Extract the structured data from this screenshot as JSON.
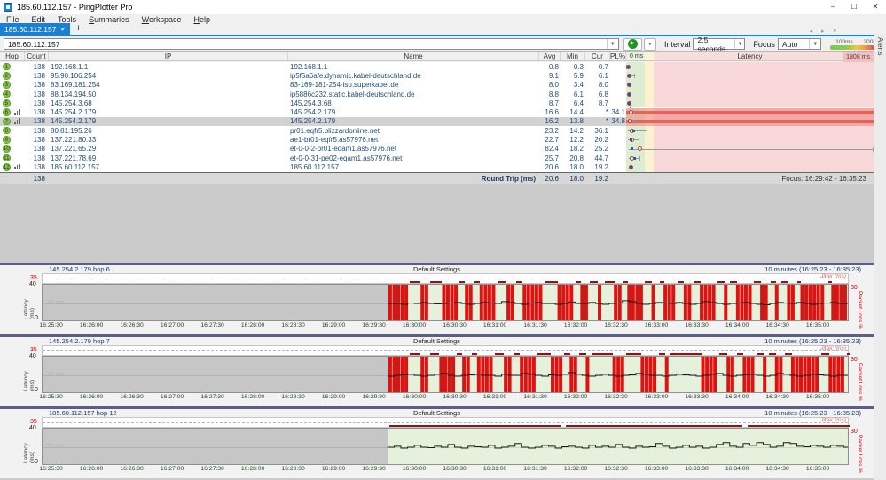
{
  "window": {
    "title": "185.60.112.157 - PingPlotter Pro"
  },
  "window_controls": {
    "minimize": "–",
    "maximize": "☐",
    "close": "✕"
  },
  "menu": {
    "items": [
      "File",
      "Edit",
      "Tools",
      "Summaries",
      "Workspace",
      "Help"
    ]
  },
  "tabs": {
    "active_label": "185.60.112.157",
    "check_icon": "✔",
    "new_tab_label": "+",
    "scroll_icons": "◂ ▸ ▾"
  },
  "toolbar": {
    "target_value": "185.60.112.157",
    "play_icon": "▶",
    "interval_label": "Interval",
    "interval_value": "2.5 seconds",
    "focus_label": "Focus",
    "focus_value": "Auto",
    "legend_100": "100ms",
    "legend_200": "200ms"
  },
  "alerts_tab_label": "Alerts",
  "colors": {
    "accent_blue": "#1a80d1",
    "hop_badge_green": "#8ac14d",
    "loss_red": "#df1212",
    "band_green": "#dcedd2",
    "band_yellow": "#fdf2cf",
    "band_red": "#f7d7d7",
    "jitter_dark_red": "#8e1515"
  },
  "table": {
    "headers": {
      "hop": "Hop",
      "count": "Count",
      "ip": "IP",
      "name": "Name",
      "avg": "Avg",
      "min": "Min",
      "cur": "Cur",
      "pl": "PL%"
    },
    "latency_header": {
      "left": "0 ms",
      "center": "Latency",
      "right": "1808 ms"
    },
    "latency_scale_max_ms": 1808,
    "rows": [
      {
        "hop": "1",
        "count": "138",
        "ip": "192.168.1.1",
        "name": "192.168.1.1",
        "avg": "0.8",
        "min": "0.3",
        "cur": "0.7",
        "pl": "",
        "max_ms": 3,
        "graph_icon": false,
        "selected": false,
        "loss": false
      },
      {
        "hop": "2",
        "count": "138",
        "ip": "95.90.106.254",
        "name": "ip5f5a6afe.dynamic.kabel-deutschland.de",
        "avg": "9.1",
        "min": "5.9",
        "cur": "6.1",
        "pl": "",
        "max_ms": 60,
        "graph_icon": false,
        "selected": false,
        "loss": false
      },
      {
        "hop": "3",
        "count": "138",
        "ip": "83.169.181.254",
        "name": "83-169-181-254-isp.superkabel.de",
        "avg": "8.0",
        "min": "3.4",
        "cur": "8.0",
        "pl": "",
        "max_ms": 25,
        "graph_icon": false,
        "selected": false,
        "loss": false
      },
      {
        "hop": "4",
        "count": "138",
        "ip": "88.134.194.50",
        "name": "ip5886c232.static.kabel-deutschland.de",
        "avg": "8.8",
        "min": "6.1",
        "cur": "6.8",
        "pl": "",
        "max_ms": 30,
        "graph_icon": false,
        "selected": false,
        "loss": false
      },
      {
        "hop": "5",
        "count": "138",
        "ip": "145.254.3.68",
        "name": "145.254.3.68",
        "avg": "8.7",
        "min": "6.4",
        "cur": "8.7",
        "pl": "",
        "max_ms": 25,
        "graph_icon": false,
        "selected": false,
        "loss": false
      },
      {
        "hop": "6",
        "count": "138",
        "ip": "145.254.2.179",
        "name": "145.254.2.179",
        "avg": "16.6",
        "min": "14.4",
        "cur": "*",
        "pl": "34.1",
        "max_ms": 55,
        "graph_icon": true,
        "selected": false,
        "loss": true
      },
      {
        "hop": "7",
        "count": "138",
        "ip": "145.254.2.179",
        "name": "145.254.2.179",
        "avg": "16.2",
        "min": "13.8",
        "cur": "*",
        "pl": "34.8",
        "max_ms": 55,
        "graph_icon": true,
        "selected": true,
        "loss": true
      },
      {
        "hop": "8",
        "count": "138",
        "ip": "80.81.195.26",
        "name": "pr01.eqfr5.blizzardonline.net",
        "avg": "23.2",
        "min": "14.2",
        "cur": "36.1",
        "pl": "",
        "max_ms": 150,
        "graph_icon": false,
        "selected": false,
        "loss": false
      },
      {
        "hop": "9",
        "count": "138",
        "ip": "137.221.80.33",
        "name": "ae1-br01-eqfr5.as57976.net",
        "avg": "22.7",
        "min": "12.2",
        "cur": "20.2",
        "pl": "",
        "max_ms": 90,
        "graph_icon": false,
        "selected": false,
        "loss": false
      },
      {
        "hop": "10",
        "count": "138",
        "ip": "137.221.65.29",
        "name": "et-0-0-2-br01-eqam1.as57976.net",
        "avg": "82.4",
        "min": "18.2",
        "cur": "25.2",
        "pl": "",
        "max_ms": 1808,
        "graph_icon": false,
        "selected": false,
        "loss": false
      },
      {
        "hop": "11",
        "count": "138",
        "ip": "137.221.78.69",
        "name": "et-0-0-31-pe02-eqam1.as57976.net",
        "avg": "25.7",
        "min": "20.8",
        "cur": "44.7",
        "pl": "",
        "max_ms": 100,
        "graph_icon": false,
        "selected": false,
        "loss": false
      },
      {
        "hop": "12",
        "count": "138",
        "ip": "185.60.112.157",
        "name": "185.60.112.157",
        "avg": "20.6",
        "min": "18.0",
        "cur": "19.2",
        "pl": "",
        "max_ms": 40,
        "graph_icon": true,
        "selected": false,
        "loss": false
      }
    ],
    "summary": {
      "count": "138",
      "label": "Round Trip (ms)",
      "avg": "20.6",
      "min": "18.0",
      "cur": "19.2",
      "focus": "Focus: 16:29:42 - 16:35:23"
    }
  },
  "graphs": {
    "shared": {
      "preset_label": "Default Settings",
      "range_label": "10 minutes (16:25:23 - 16:35:23)",
      "jitter_axis_max": "35",
      "jitter_label": "Jitter (ms)",
      "latency_axis_max": "40",
      "latency_axis_min": "0",
      "latency_axis_label": "Latency (ms)",
      "gridline_label": "20 ms",
      "gridline_ms": 20,
      "packet_loss_axis_max": "30",
      "packet_loss_axis_label": "Packet Loss %",
      "duration_s": 600,
      "data_start_s": 257,
      "sample_step_s": 5,
      "latency_scale_max": 40,
      "x_ticks": [
        "16:25:30",
        "16:26:00",
        "16:26:30",
        "16:27:00",
        "16:27:30",
        "16:28:00",
        "16:28:30",
        "16:29:00",
        "16:29:30",
        "16:30:00",
        "16:30:30",
        "16:31:00",
        "16:31:30",
        "16:32:00",
        "16:32:30",
        "16:33:00",
        "16:33:30",
        "16:34:00",
        "16:34:30",
        "16:35:00"
      ],
      "first_tick_offset_s": 7,
      "tick_interval_s": 30
    },
    "items": [
      {
        "title": "145.254.2.179 hop 6",
        "latency_ms": [
          20,
          20,
          19,
          20.5,
          20,
          21,
          20,
          19.5,
          20,
          20.5,
          21,
          20,
          19,
          20,
          21,
          20.5,
          20,
          22,
          21,
          20,
          19,
          20.5,
          21,
          20,
          20,
          19,
          20,
          21.5,
          20,
          20,
          21,
          20,
          19,
          20,
          20.5,
          23,
          22,
          20,
          19,
          20,
          21,
          20.5,
          20,
          21,
          20,
          19,
          20,
          22,
          21,
          20,
          19,
          20,
          20.5,
          21,
          20,
          19,
          18.5,
          20,
          21,
          20.5,
          20,
          21,
          20,
          19,
          20,
          20.5,
          21,
          20,
          20
        ],
        "loss_bars_s": [
          259,
          262,
          265,
          268,
          271,
          283,
          286,
          299,
          302,
          305,
          308,
          316,
          319,
          327,
          330,
          333,
          336,
          347,
          350,
          359,
          362,
          365,
          368,
          371,
          385,
          388,
          391,
          394,
          402,
          405,
          415,
          427,
          430,
          437,
          440,
          443,
          446,
          455,
          464,
          467,
          470,
          479,
          482,
          491,
          494,
          497,
          500,
          509,
          518,
          521,
          524,
          527,
          536,
          539,
          547,
          556,
          559,
          566,
          569,
          572,
          575,
          578,
          581,
          589,
          592,
          595,
          598
        ],
        "jitter_segments_s": [
          [
            273,
            281
          ],
          [
            288,
            297
          ],
          [
            310,
            314
          ],
          [
            321,
            325
          ],
          [
            338,
            345
          ],
          [
            352,
            357
          ],
          [
            373,
            383
          ],
          [
            396,
            400
          ],
          [
            407,
            413
          ],
          [
            418,
            425
          ],
          [
            432,
            435
          ],
          [
            448,
            453
          ],
          [
            459,
            462
          ],
          [
            472,
            477
          ],
          [
            484,
            489
          ],
          [
            502,
            507
          ],
          [
            511,
            516
          ],
          [
            529,
            534
          ],
          [
            541,
            545
          ],
          [
            549,
            554
          ],
          [
            561,
            564
          ],
          [
            584,
            587
          ]
        ]
      },
      {
        "title": "145.254.2.179 hop 7",
        "latency_ms": [
          19,
          20,
          20.5,
          21,
          20,
          19,
          20,
          21,
          22,
          20,
          19,
          20,
          20.5,
          21,
          20,
          20,
          19,
          21,
          20,
          20,
          22,
          21,
          20,
          19,
          20.5,
          20,
          21,
          23,
          21,
          20,
          19,
          20,
          21,
          20,
          19,
          20,
          20.5,
          22,
          21,
          20,
          20,
          19,
          20,
          21,
          20.5,
          20,
          19,
          20,
          21,
          22,
          20,
          19,
          20,
          20.5,
          21,
          20,
          19,
          20,
          22,
          21,
          20,
          19,
          20,
          21,
          20.5,
          20,
          19,
          20,
          20
        ],
        "loss_bars_s": [
          259,
          262,
          265,
          268,
          271,
          283,
          286,
          297,
          300,
          303,
          306,
          314,
          317,
          325,
          328,
          331,
          334,
          345,
          348,
          357,
          360,
          363,
          366,
          380,
          383,
          386,
          394,
          397,
          406,
          426,
          429,
          432,
          447,
          450,
          453,
          456,
          465,
          492,
          495,
          498,
          501,
          511,
          514,
          523,
          526,
          529,
          538,
          547,
          550,
          559,
          562,
          565,
          568,
          571,
          574,
          577,
          587,
          590,
          593,
          596
        ],
        "jitter_segments_s": [
          [
            273,
            281
          ],
          [
            288,
            295
          ],
          [
            308,
            312
          ],
          [
            319,
            323
          ],
          [
            336,
            343
          ],
          [
            350,
            355
          ],
          [
            368,
            378
          ],
          [
            388,
            392
          ],
          [
            399,
            404
          ],
          [
            408,
            424
          ],
          [
            434,
            445
          ],
          [
            458,
            463
          ],
          [
            467,
            490
          ],
          [
            503,
            509
          ],
          [
            516,
            521
          ],
          [
            531,
            536
          ],
          [
            540,
            545
          ],
          [
            552,
            557
          ],
          [
            579,
            585
          ],
          [
            598,
            600
          ]
        ]
      },
      {
        "title": "185.60.112.157 hop 12",
        "latency_ms": [
          20,
          21,
          19,
          20,
          22,
          20,
          19.5,
          21,
          20,
          23,
          20,
          19,
          21,
          20.5,
          20,
          22,
          19,
          20,
          21,
          24,
          20,
          19,
          20,
          22,
          21,
          19,
          20.5,
          21,
          20,
          19,
          22,
          20,
          21,
          20,
          23,
          20,
          19,
          21,
          20,
          20.5,
          24,
          21,
          19,
          20,
          22,
          20,
          21,
          19,
          20,
          23,
          25,
          21,
          20,
          24,
          22,
          25,
          23,
          20,
          21,
          25,
          24,
          21,
          20.5,
          22,
          21,
          20,
          22,
          21,
          20
        ],
        "loss_bars_s": [],
        "jitter_segments_s": [
          [
            258,
            385
          ],
          [
            389,
            520
          ],
          [
            524,
            600
          ]
        ]
      }
    ]
  }
}
